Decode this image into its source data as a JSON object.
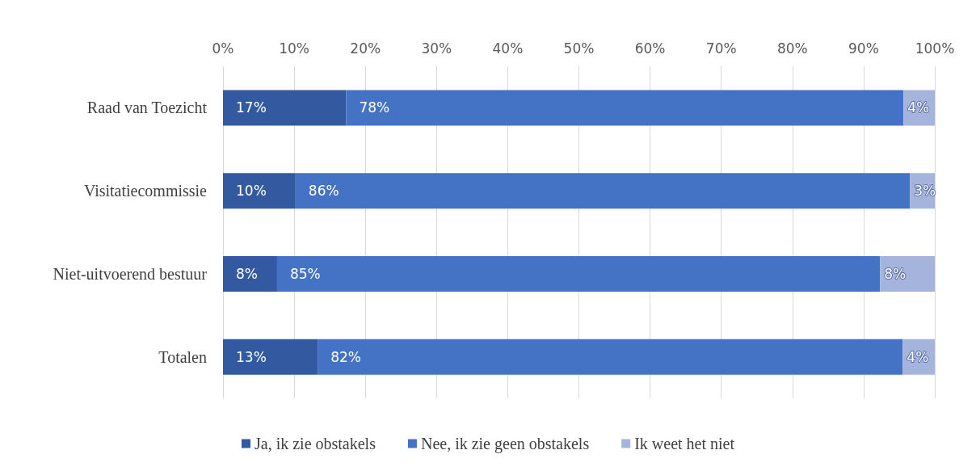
{
  "chart_data": {
    "type": "bar",
    "orientation": "horizontal",
    "stacked": true,
    "categories": [
      "Raad van Toezicht",
      "Visitatiecommissie",
      "Niet-uitvoerend bestuur",
      "Totalen"
    ],
    "series": [
      {
        "name": "Ja, ik zie obstakels",
        "color": "#335aa1",
        "values": [
          17.3,
          10.2,
          7.6,
          13.3
        ],
        "value_labels": [
          "17%",
          "10%",
          "8%",
          "13%"
        ]
      },
      {
        "name": "Nee, ik zie geen obstakels",
        "color": "#4472c4",
        "values": [
          78.3,
          86.3,
          84.7,
          82.2
        ],
        "value_labels": [
          "78%",
          "86%",
          "85%",
          "82%"
        ]
      },
      {
        "name": "Ik weet het niet",
        "color": "#a5b4dc",
        "values": [
          4.4,
          3.5,
          7.7,
          4.5
        ],
        "value_labels": [
          "4%",
          "3%",
          "8%",
          "4%"
        ]
      }
    ],
    "xlim": [
      0,
      100
    ],
    "xticks": [
      {
        "value": 0,
        "label": "0%"
      },
      {
        "value": 10,
        "label": "10%"
      },
      {
        "value": 20,
        "label": "20%"
      },
      {
        "value": 30,
        "label": "30%"
      },
      {
        "value": 40,
        "label": "40%"
      },
      {
        "value": 50,
        "label": "50%"
      },
      {
        "value": 60,
        "label": "60%"
      },
      {
        "value": 70,
        "label": "70%"
      },
      {
        "value": 80,
        "label": "80%"
      },
      {
        "value": 90,
        "label": "90%"
      },
      {
        "value": 100,
        "label": "100%"
      }
    ],
    "grid": "x",
    "legend": "bottom"
  }
}
